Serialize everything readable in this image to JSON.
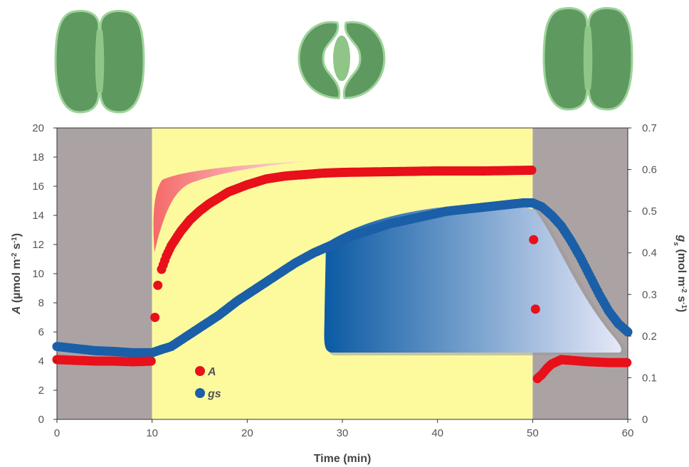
{
  "chart_data": {
    "type": "scatter",
    "xlabel": "Time (min)",
    "ylabel_left": {
      "symbol": "A",
      "text": " (µmol m",
      "sup1": "-2",
      "mid": " s",
      "sup2": "-1",
      "end": ")"
    },
    "ylabel_right": {
      "symbol": "g",
      "sub": "s",
      "text": " (mol m",
      "sup1": "-2",
      "mid": " s",
      "sup2": "-1",
      "end": ")"
    },
    "x_ticks": [
      "0",
      "10",
      "20",
      "30",
      "40",
      "50",
      "60"
    ],
    "y_left_ticks": [
      "0",
      "2",
      "4",
      "6",
      "8",
      "10",
      "12",
      "14",
      "16",
      "18",
      "20"
    ],
    "y_right_ticks": [
      "0",
      "0.1",
      "0.2",
      "0.3",
      "0.4",
      "0.5",
      "0.6",
      "0.7"
    ],
    "xlim": [
      0,
      60
    ],
    "ylim_left": [
      0,
      20
    ],
    "ylim_right": [
      0,
      0.7
    ],
    "periods": [
      {
        "from": 0,
        "to": 10,
        "state": "dark",
        "color": "#aba3a3"
      },
      {
        "from": 10,
        "to": 50,
        "state": "light",
        "color": "#fdfa9e"
      },
      {
        "from": 50,
        "to": 60,
        "state": "dark",
        "color": "#aba3a3"
      }
    ],
    "legend": [
      {
        "label": "A",
        "color": "#e8101a"
      },
      {
        "label": "gs",
        "color": "#1a5fa8"
      }
    ],
    "series": [
      {
        "name": "A",
        "axis": "left",
        "color": "#e8101a",
        "points": [
          [
            0,
            4.1
          ],
          [
            2,
            4.05
          ],
          [
            4,
            4.0
          ],
          [
            6,
            4.0
          ],
          [
            8,
            3.95
          ],
          [
            9.9,
            4.0
          ],
          [
            10.3,
            7.0
          ],
          [
            10.6,
            9.2
          ],
          [
            11,
            10.3
          ],
          [
            11.5,
            11.2
          ],
          [
            12,
            11.9
          ],
          [
            13,
            12.9
          ],
          [
            14,
            13.7
          ],
          [
            15,
            14.3
          ],
          [
            16,
            14.8
          ],
          [
            18,
            15.6
          ],
          [
            20,
            16.1
          ],
          [
            22,
            16.5
          ],
          [
            24,
            16.7
          ],
          [
            26,
            16.8
          ],
          [
            28,
            16.9
          ],
          [
            30,
            16.95
          ],
          [
            35,
            17.0
          ],
          [
            40,
            17.05
          ],
          [
            45,
            17.05
          ],
          [
            49.9,
            17.1
          ],
          [
            50.5,
            2.8
          ],
          [
            51,
            3.1
          ],
          [
            51.5,
            3.5
          ],
          [
            52,
            3.8
          ],
          [
            53,
            4.1
          ],
          [
            54,
            4.05
          ],
          [
            56,
            3.95
          ],
          [
            58,
            3.9
          ],
          [
            59.9,
            3.9
          ]
        ]
      },
      {
        "name": "gs",
        "axis": "right",
        "color": "#1a5fa8",
        "points": [
          [
            0,
            0.175
          ],
          [
            2,
            0.17
          ],
          [
            4,
            0.165
          ],
          [
            6,
            0.163
          ],
          [
            8,
            0.16
          ],
          [
            10,
            0.16
          ],
          [
            11,
            0.168
          ],
          [
            12,
            0.175
          ],
          [
            13,
            0.19
          ],
          [
            14,
            0.205
          ],
          [
            15,
            0.22
          ],
          [
            17,
            0.25
          ],
          [
            19,
            0.285
          ],
          [
            21,
            0.315
          ],
          [
            23,
            0.345
          ],
          [
            25,
            0.375
          ],
          [
            27,
            0.4
          ],
          [
            29,
            0.42
          ],
          [
            31,
            0.44
          ],
          [
            33,
            0.455
          ],
          [
            35,
            0.47
          ],
          [
            37,
            0.48
          ],
          [
            39,
            0.49
          ],
          [
            41,
            0.5
          ],
          [
            43,
            0.505
          ],
          [
            45,
            0.51
          ],
          [
            47,
            0.515
          ],
          [
            49,
            0.52
          ],
          [
            50,
            0.52
          ],
          [
            51,
            0.51
          ],
          [
            52,
            0.49
          ],
          [
            53,
            0.465
          ],
          [
            54,
            0.43
          ],
          [
            55,
            0.39
          ],
          [
            56,
            0.345
          ],
          [
            57,
            0.3
          ],
          [
            58,
            0.26
          ],
          [
            59,
            0.23
          ],
          [
            60,
            0.21
          ]
        ]
      }
    ]
  },
  "decor": {
    "guard_cell_fill": "#5e9a60",
    "guard_cell_stroke": "#9ed39a",
    "pore_fill": "#8fc688",
    "stomata": [
      {
        "label": "closed-stomata-left",
        "state": "closed"
      },
      {
        "label": "open-stomata-middle",
        "state": "open"
      },
      {
        "label": "closed-stomata-right",
        "state": "closed"
      }
    ],
    "a_response_gradient": [
      "#f56a6a",
      "#fde3e3"
    ],
    "gs_response_gradient": [
      "#0a5aa4",
      "#e6e8f8"
    ]
  }
}
